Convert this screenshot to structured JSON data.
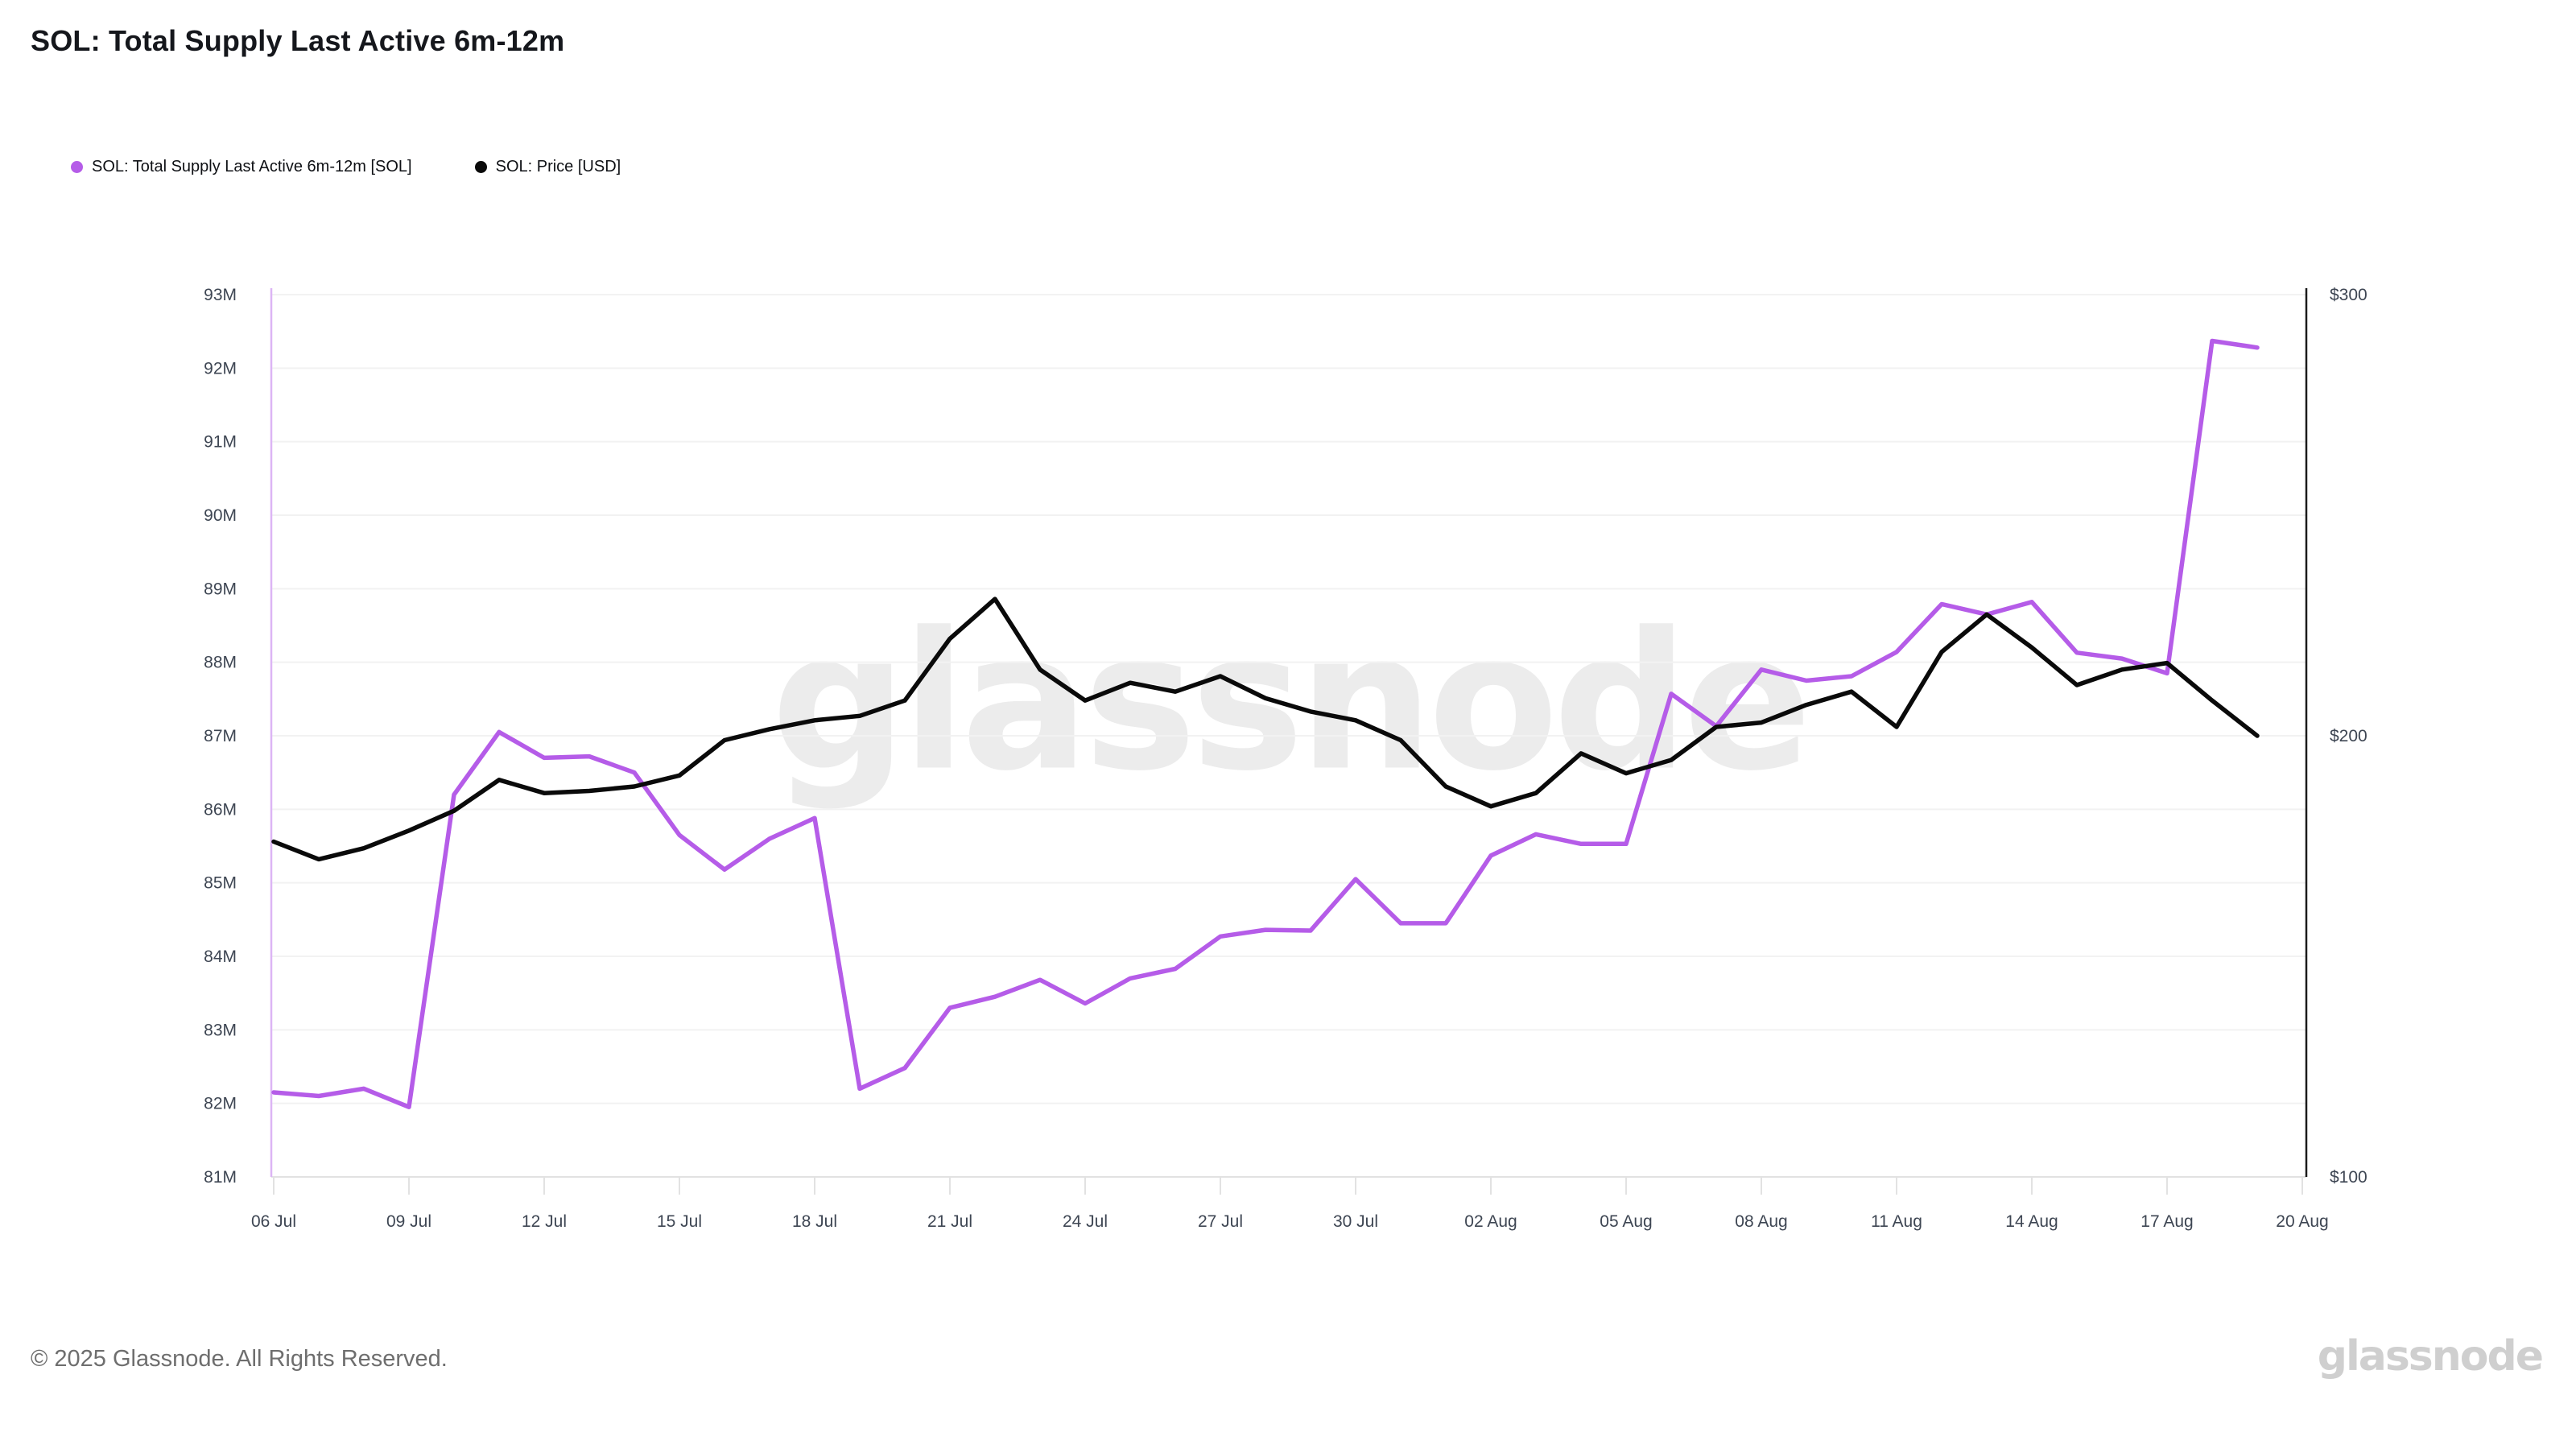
{
  "header": {
    "title": "SOL: Total Supply Last Active 6m-12m"
  },
  "legend": {
    "items": [
      {
        "label": "SOL: Total Supply Last Active 6m-12m [SOL]",
        "color": "#b55ce8"
      },
      {
        "label": "SOL: Price [USD]",
        "color": "#0a0a0a"
      }
    ]
  },
  "watermark": "glassnode",
  "footer": {
    "copyright": "© 2025 Glassnode. All Rights Reserved.",
    "brand": "glassnode"
  },
  "chart_data": {
    "type": "line",
    "x": [
      "06 Jul",
      "07 Jul",
      "08 Jul",
      "09 Jul",
      "10 Jul",
      "11 Jul",
      "12 Jul",
      "13 Jul",
      "14 Jul",
      "15 Jul",
      "16 Jul",
      "17 Jul",
      "18 Jul",
      "19 Jul",
      "20 Jul",
      "21 Jul",
      "22 Jul",
      "23 Jul",
      "24 Jul",
      "25 Jul",
      "26 Jul",
      "27 Jul",
      "28 Jul",
      "29 Jul",
      "30 Jul",
      "31 Jul",
      "01 Aug",
      "02 Aug",
      "03 Aug",
      "04 Aug",
      "05 Aug",
      "06 Aug",
      "07 Aug",
      "08 Aug",
      "09 Aug",
      "10 Aug",
      "11 Aug",
      "12 Aug",
      "13 Aug",
      "14 Aug",
      "15 Aug",
      "16 Aug",
      "17 Aug",
      "18 Aug",
      "19 Aug"
    ],
    "x_tick_labels": [
      "06 Jul",
      "09 Jul",
      "12 Jul",
      "15 Jul",
      "18 Jul",
      "21 Jul",
      "24 Jul",
      "27 Jul",
      "30 Jul",
      "02 Aug",
      "05 Aug",
      "08 Aug",
      "11 Aug",
      "14 Aug",
      "17 Aug",
      "20 Aug"
    ],
    "series": [
      {
        "name": "SOL: Total Supply Last Active 6m-12m [SOL]",
        "yaxis": "left",
        "unit": "M SOL",
        "color": "#b55ce8",
        "values": [
          82.15,
          82.1,
          82.2,
          81.95,
          86.2,
          87.05,
          86.7,
          86.72,
          86.5,
          85.65,
          85.18,
          85.6,
          85.88,
          82.2,
          82.48,
          83.3,
          83.45,
          83.68,
          83.36,
          83.7,
          83.83,
          84.27,
          84.36,
          84.35,
          85.05,
          84.45,
          84.45,
          85.37,
          85.66,
          85.53,
          85.53,
          87.57,
          87.13,
          87.9,
          87.75,
          87.81,
          88.14,
          88.79,
          88.65,
          88.82,
          88.13,
          88.05,
          87.85,
          92.37,
          92.28
        ]
      },
      {
        "name": "SOL: Price [USD]",
        "yaxis": "right",
        "unit": "USD",
        "color": "#0a0a0a",
        "values": [
          176,
          172,
          174.5,
          178.5,
          183,
          190,
          187,
          187.5,
          188.5,
          191,
          199,
          201.5,
          203.5,
          204.5,
          208,
          222,
          231,
          215,
          208,
          212,
          210,
          213.5,
          208.5,
          205.5,
          203.5,
          199,
          188.5,
          184,
          187,
          196,
          191.5,
          194.5,
          202,
          203,
          207,
          210,
          202,
          219,
          227.5,
          220,
          211.5,
          215,
          216.5,
          208,
          200
        ]
      }
    ],
    "y_left": {
      "min": 81,
      "max": 93,
      "tick_labels": [
        "93M",
        "92M",
        "91M",
        "90M",
        "89M",
        "88M",
        "87M",
        "86M",
        "85M",
        "84M",
        "83M",
        "82M",
        "81M"
      ],
      "axis_color": "#dcb5f5"
    },
    "y_right": {
      "min": 100,
      "max": 300,
      "tick_labels": [
        "$300",
        "$200",
        "$100"
      ],
      "tick_values": [
        300,
        200,
        100
      ],
      "axis_color": "#1a1a1a"
    },
    "grid": true,
    "legend_position": "top-left",
    "grid_color": "#f2f2f2",
    "baseline_color": "#e2e2e2",
    "tick_label_color": "#3e4653"
  }
}
